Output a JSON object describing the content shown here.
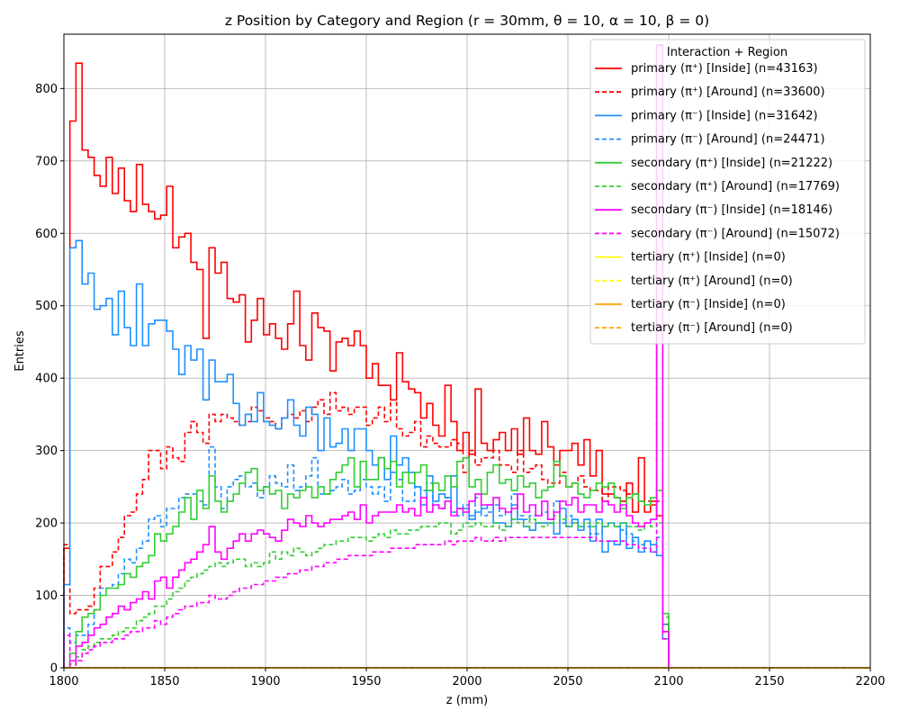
{
  "chart_data": {
    "type": "histogram",
    "title": "z Position by Category and Region (r = 30mm, θ = 10, α = 10, β = 0)",
    "xlabel": "z (mm)",
    "ylabel": "Entries",
    "xlim": [
      1800,
      2200
    ],
    "ylim": [
      0,
      875
    ],
    "xticks": [
      1800,
      1850,
      1900,
      1950,
      2000,
      2050,
      2100,
      2150,
      2200
    ],
    "yticks": [
      0,
      100,
      200,
      300,
      400,
      500,
      600,
      700,
      800
    ],
    "grid": true,
    "legend": {
      "title": "Interaction + Region",
      "placement": "top-right"
    },
    "bin_edges": {
      "start": 1800,
      "width": 3
    },
    "series": [
      {
        "name": "primary (π⁺) [Inside] (n=43163)",
        "color": "#ff0000",
        "style": "solid",
        "values": [
          165,
          755,
          835,
          715,
          705,
          680,
          665,
          705,
          655,
          690,
          645,
          630,
          695,
          640,
          630,
          620,
          625,
          665,
          580,
          595,
          600,
          560,
          550,
          455,
          580,
          545,
          560,
          510,
          505,
          515,
          450,
          480,
          510,
          460,
          475,
          455,
          440,
          475,
          520,
          445,
          425,
          490,
          470,
          465,
          410,
          450,
          455,
          445,
          465,
          445,
          400,
          420,
          390,
          390,
          370,
          435,
          395,
          385,
          380,
          345,
          365,
          335,
          320,
          390,
          340,
          300,
          325,
          295,
          385,
          310,
          300,
          315,
          325,
          300,
          330,
          295,
          345,
          300,
          295,
          340,
          305,
          280,
          300,
          300,
          310,
          280,
          315,
          265,
          300,
          240,
          240,
          235,
          230,
          255,
          215,
          290,
          215,
          230,
          210,
          60
        ]
      },
      {
        "name": "primary (π⁺) [Around] (n=33600)",
        "color": "#ff0000",
        "style": "dashed",
        "values": [
          170,
          75,
          80,
          80,
          85,
          110,
          140,
          140,
          160,
          180,
          210,
          215,
          240,
          260,
          300,
          300,
          275,
          305,
          290,
          285,
          325,
          340,
          325,
          310,
          350,
          340,
          350,
          345,
          340,
          335,
          340,
          360,
          355,
          345,
          340,
          330,
          345,
          350,
          345,
          355,
          340,
          360,
          370,
          350,
          380,
          355,
          360,
          350,
          360,
          360,
          335,
          345,
          360,
          340,
          370,
          330,
          320,
          325,
          340,
          305,
          320,
          310,
          305,
          305,
          315,
          310,
          270,
          300,
          280,
          290,
          290,
          300,
          280,
          280,
          270,
          300,
          270,
          275,
          280,
          260,
          255,
          255,
          270,
          250,
          255,
          265,
          250,
          245,
          245,
          230,
          250,
          250,
          245,
          240,
          240,
          230,
          230,
          225,
          230,
          50
        ]
      },
      {
        "name": "primary (π⁻) [Inside] (n=31642)",
        "color": "#1e90ff",
        "style": "solid",
        "values": [
          115,
          580,
          590,
          530,
          545,
          495,
          500,
          510,
          460,
          520,
          470,
          445,
          530,
          445,
          475,
          480,
          480,
          465,
          440,
          405,
          445,
          425,
          440,
          370,
          425,
          395,
          395,
          405,
          365,
          335,
          350,
          340,
          380,
          340,
          335,
          330,
          345,
          370,
          335,
          320,
          360,
          350,
          300,
          345,
          305,
          310,
          330,
          300,
          330,
          330,
          300,
          280,
          290,
          260,
          320,
          280,
          290,
          270,
          250,
          225,
          265,
          230,
          240,
          235,
          265,
          220,
          220,
          205,
          215,
          220,
          225,
          200,
          200,
          195,
          225,
          205,
          195,
          190,
          200,
          200,
          200,
          185,
          220,
          195,
          205,
          190,
          205,
          175,
          205,
          160,
          175,
          170,
          200,
          165,
          180,
          160,
          175,
          170,
          155,
          40
        ]
      },
      {
        "name": "primary (π⁻) [Around] (n=24471)",
        "color": "#1e90ff",
        "style": "dashed",
        "values": [
          55,
          35,
          45,
          45,
          60,
          80,
          110,
          110,
          115,
          130,
          150,
          145,
          165,
          175,
          205,
          210,
          195,
          220,
          220,
          235,
          240,
          240,
          230,
          225,
          305,
          250,
          220,
          250,
          260,
          265,
          250,
          255,
          235,
          250,
          265,
          255,
          250,
          280,
          245,
          250,
          265,
          290,
          240,
          240,
          245,
          250,
          260,
          240,
          245,
          260,
          250,
          240,
          250,
          230,
          270,
          260,
          230,
          230,
          250,
          245,
          255,
          225,
          220,
          235,
          215,
          210,
          225,
          210,
          235,
          210,
          215,
          225,
          210,
          215,
          240,
          210,
          205,
          210,
          210,
          215,
          205,
          230,
          200,
          210,
          200,
          195,
          195,
          185,
          185,
          195,
          200,
          195,
          190,
          185,
          175,
          170,
          175,
          160,
          180,
          60
        ]
      },
      {
        "name": "secondary (π⁺) [Inside] (n=21222)",
        "color": "#32cd32",
        "style": "solid",
        "values": [
          0,
          20,
          50,
          70,
          75,
          80,
          100,
          110,
          110,
          115,
          130,
          125,
          140,
          145,
          155,
          185,
          175,
          185,
          195,
          215,
          235,
          205,
          245,
          220,
          265,
          230,
          215,
          230,
          240,
          255,
          270,
          275,
          245,
          250,
          240,
          245,
          220,
          240,
          235,
          245,
          250,
          235,
          250,
          240,
          260,
          270,
          280,
          290,
          250,
          285,
          260,
          260,
          290,
          275,
          285,
          250,
          270,
          255,
          270,
          280,
          245,
          255,
          245,
          265,
          250,
          285,
          290,
          250,
          260,
          240,
          270,
          280,
          255,
          260,
          245,
          265,
          250,
          255,
          235,
          245,
          250,
          285,
          265,
          250,
          255,
          240,
          235,
          245,
          255,
          250,
          255,
          235,
          220,
          235,
          240,
          230,
          225,
          235,
          245,
          75
        ]
      },
      {
        "name": "secondary (π⁺) [Around] (n=17769)",
        "color": "#32cd32",
        "style": "dashed",
        "values": [
          0,
          5,
          15,
          25,
          30,
          35,
          40,
          40,
          45,
          50,
          55,
          55,
          65,
          70,
          75,
          85,
          85,
          95,
          105,
          110,
          120,
          125,
          130,
          135,
          140,
          145,
          140,
          145,
          150,
          150,
          140,
          145,
          140,
          145,
          160,
          150,
          160,
          155,
          165,
          160,
          155,
          160,
          165,
          170,
          170,
          175,
          175,
          180,
          180,
          180,
          175,
          180,
          185,
          180,
          190,
          185,
          185,
          190,
          190,
          195,
          195,
          195,
          200,
          200,
          185,
          190,
          200,
          195,
          200,
          195,
          195,
          200,
          190,
          195,
          205,
          200,
          195,
          205,
          200,
          195,
          200,
          210,
          205,
          195,
          200,
          195,
          200,
          195,
          200,
          195,
          200,
          195,
          200,
          195,
          195,
          190,
          200,
          195,
          200,
          70
        ]
      },
      {
        "name": "secondary (π⁻) [Inside] (n=18146)",
        "color": "#ff00ff",
        "style": "solid",
        "values": [
          0,
          10,
          30,
          35,
          45,
          55,
          60,
          70,
          75,
          85,
          80,
          90,
          95,
          105,
          95,
          120,
          125,
          110,
          125,
          135,
          145,
          150,
          160,
          170,
          195,
          160,
          150,
          165,
          175,
          185,
          175,
          185,
          190,
          185,
          180,
          175,
          190,
          205,
          200,
          195,
          210,
          200,
          195,
          200,
          205,
          205,
          210,
          215,
          205,
          225,
          200,
          210,
          215,
          215,
          215,
          225,
          215,
          220,
          210,
          235,
          215,
          225,
          220,
          230,
          210,
          220,
          215,
          230,
          240,
          225,
          225,
          235,
          220,
          215,
          220,
          240,
          215,
          225,
          210,
          230,
          205,
          215,
          230,
          225,
          235,
          215,
          225,
          225,
          215,
          230,
          225,
          215,
          225,
          210,
          200,
          195,
          200,
          205,
          860,
          50
        ]
      },
      {
        "name": "secondary (π⁻) [Around] (n=15072)",
        "color": "#ff00ff",
        "style": "dashed",
        "values": [
          45,
          0,
          10,
          20,
          25,
          30,
          35,
          35,
          40,
          40,
          45,
          50,
          50,
          55,
          55,
          65,
          60,
          70,
          75,
          80,
          85,
          85,
          90,
          90,
          100,
          95,
          95,
          100,
          105,
          110,
          110,
          115,
          115,
          120,
          120,
          125,
          125,
          130,
          130,
          135,
          135,
          140,
          140,
          145,
          145,
          150,
          150,
          155,
          155,
          155,
          155,
          160,
          160,
          160,
          165,
          165,
          165,
          165,
          170,
          170,
          170,
          170,
          170,
          175,
          170,
          175,
          175,
          175,
          180,
          175,
          175,
          180,
          175,
          180,
          180,
          180,
          180,
          180,
          180,
          180,
          180,
          180,
          180,
          180,
          180,
          180,
          180,
          180,
          175,
          175,
          175,
          175,
          175,
          170,
          170,
          165,
          165,
          160,
          860,
          40
        ]
      },
      {
        "name": "tertiary (π⁺) [Inside] (n=0)",
        "color": "#ffff00",
        "style": "solid",
        "values": []
      },
      {
        "name": "tertiary (π⁺) [Around] (n=0)",
        "color": "#ffff00",
        "style": "dashed",
        "values": []
      },
      {
        "name": "tertiary (π⁻) [Inside] (n=0)",
        "color": "#ffa500",
        "style": "solid",
        "values": []
      },
      {
        "name": "tertiary (π⁻) [Around] (n=0)",
        "color": "#ffa500",
        "style": "dashed",
        "values": []
      }
    ]
  }
}
